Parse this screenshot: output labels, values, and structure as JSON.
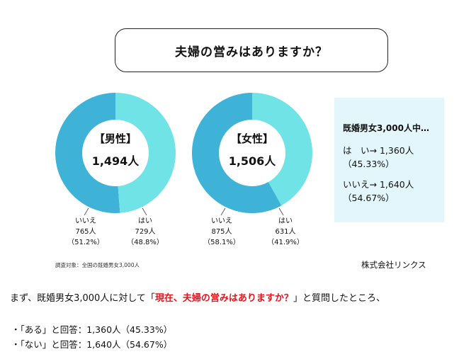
{
  "title": "夫婦の営みはありますか？",
  "colors": {
    "no": "#3fb3d7",
    "yes": "#6fe3e6",
    "highlight": "#e2161d",
    "summary_bg": "#e3f6fb"
  },
  "chart_data": [
    {
      "type": "pie",
      "center_group": "【男性】",
      "center_total": "1,494人",
      "slices": [
        {
          "label": "いいえ",
          "value": 765,
          "pct": 51.2,
          "text": "765人（51.2%）"
        },
        {
          "label": "はい",
          "value": 729,
          "pct": 48.8,
          "text": "729人（48.8%）"
        }
      ]
    },
    {
      "type": "pie",
      "center_group": "【女性】",
      "center_total": "1,506人",
      "slices": [
        {
          "label": "いいえ",
          "value": 875,
          "pct": 58.1,
          "text": "875人（58.1%）"
        },
        {
          "label": "はい",
          "value": 631,
          "pct": 41.9,
          "text": "631人（41.9%）"
        }
      ]
    }
  ],
  "summary": {
    "heading": "既婚男女3,000人中…",
    "yes_line1": "は　い→ 1,360人",
    "yes_line2": "（45.33%）",
    "no_line1": "いいえ→ 1,640人",
    "no_line2": "（54.67%）"
  },
  "survey_note": "調査対象：全国の既婚男女3,000人",
  "company": "株式会社リンクス",
  "intro": {
    "before": "まず、既婚男女3,000人に対して「",
    "highlight": "現在、夫婦の営みはありますか？",
    "after": "」と質問したところ、"
  },
  "bullets": [
    "・「ある」と回答：1,360人（45.33%）",
    "・「ない」と回答：1,640人（54.67%）"
  ]
}
